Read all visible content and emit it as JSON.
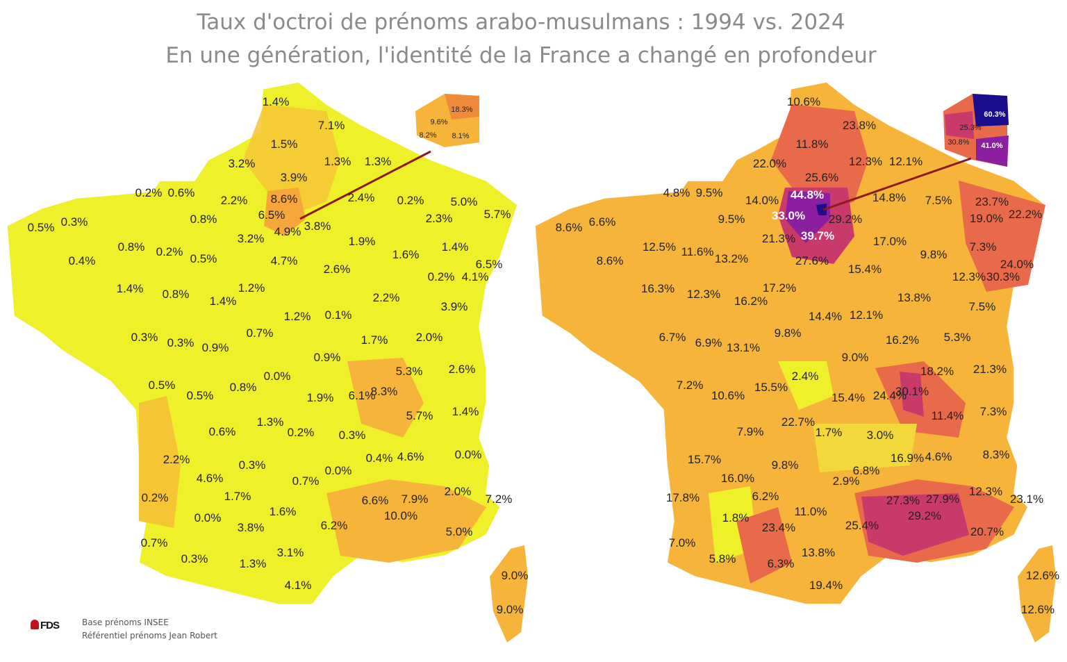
{
  "title_line1": "Taux d'octroi de prénoms arabo-musulmans : 1994 vs. 2024",
  "title_line2": "En une génération, l'identité de la France a changé en profondeur",
  "footer_line1": "Base prénoms INSEE",
  "footer_line2": "Référentiel prénoms Jean Robert",
  "logo_text": "FDS",
  "colors": {
    "low": "#eef02a",
    "mid": "#f6b53a",
    "high": "#e86a4a",
    "veryhigh": "#c93a6a",
    "extreme": "#8c1fa0",
    "max": "#1b0e8c",
    "callout": "#8b1a1a"
  },
  "map_1994": {
    "labels": [
      "1.4%",
      "7.1%",
      "1.5%",
      "3.2%",
      "1.3%",
      "1.3%",
      "3.9%",
      "0.2%",
      "0.6%",
      "2.2%",
      "8.6%",
      "2.4%",
      "0.2%",
      "5.0%",
      "0.5%",
      "0.3%",
      "0.8%",
      "6.5%",
      "3.8%",
      "4.9%",
      "2.3%",
      "5.7%",
      "3.2%",
      "1.9%",
      "0.8%",
      "0.2%",
      "0.5%",
      "1.4%",
      "0.4%",
      "4.7%",
      "2.6%",
      "1.6%",
      "6.5%",
      "1.4%",
      "0.8%",
      "1.2%",
      "0.2%",
      "4.1%",
      "1.4%",
      "2.2%",
      "1.2%",
      "0.1%",
      "3.9%",
      "0.7%",
      "0.3%",
      "0.3%",
      "0.9%",
      "1.7%",
      "2.0%",
      "0.9%",
      "0.0%",
      "5.3%",
      "2.6%",
      "0.5%",
      "0.5%",
      "0.8%",
      "1.9%",
      "6.1%",
      "8.3%",
      "1.3%",
      "5.7%",
      "1.4%",
      "0.6%",
      "0.2%",
      "0.3%",
      "0.4%",
      "4.6%",
      "0.0%",
      "2.2%",
      "0.3%",
      "4.6%",
      "0.7%",
      "0.0%",
      "1.7%",
      "0.2%",
      "6.6%",
      "7.9%",
      "2.0%",
      "7.2%",
      "1.6%",
      "0.0%",
      "10.0%",
      "3.8%",
      "6.2%",
      "5.0%",
      "0.7%",
      "0.3%",
      "1.3%",
      "3.1%",
      "4.1%",
      "9.0%",
      "9.0%"
    ],
    "inset_labels": [
      "18.3%",
      "9.6%",
      "8.2%",
      "8.1%"
    ]
  },
  "map_2024": {
    "labels": [
      "10.6%",
      "23.8%",
      "11.8%",
      "22.0%",
      "12.3%",
      "12.1%",
      "25.6%",
      "4.8%",
      "9.5%",
      "14.0%",
      "44.8%",
      "14.8%",
      "7.5%",
      "23.7%",
      "8.6%",
      "6.6%",
      "9.5%",
      "33.0%",
      "29.2%",
      "19.0%",
      "22.2%",
      "21.3%",
      "39.7%",
      "17.0%",
      "12.5%",
      "11.6%",
      "13.2%",
      "7.3%",
      "8.6%",
      "27.6%",
      "15.4%",
      "9.8%",
      "24.0%",
      "16.3%",
      "12.3%",
      "17.2%",
      "12.3%",
      "30.3%",
      "16.2%",
      "13.8%",
      "14.4%",
      "12.1%",
      "7.5%",
      "9.8%",
      "6.7%",
      "6.9%",
      "13.1%",
      "16.2%",
      "5.3%",
      "9.0%",
      "2.4%",
      "18.2%",
      "21.3%",
      "7.2%",
      "10.6%",
      "15.5%",
      "15.4%",
      "24.4%",
      "30.1%",
      "22.7%",
      "11.4%",
      "7.3%",
      "7.9%",
      "1.7%",
      "3.0%",
      "16.9%",
      "4.6%",
      "8.3%",
      "15.7%",
      "9.8%",
      "16.0%",
      "2.9%",
      "6.8%",
      "6.2%",
      "17.8%",
      "27.3%",
      "27.9%",
      "12.3%",
      "23.1%",
      "11.0%",
      "1.8%",
      "29.2%",
      "23.4%",
      "25.4%",
      "20.7%",
      "7.0%",
      "5.8%",
      "6.3%",
      "13.8%",
      "19.4%",
      "12.6%",
      "12.6%"
    ],
    "inset_labels": [
      "60.3%",
      "25.3%",
      "30.8%",
      "41.0%"
    ]
  }
}
